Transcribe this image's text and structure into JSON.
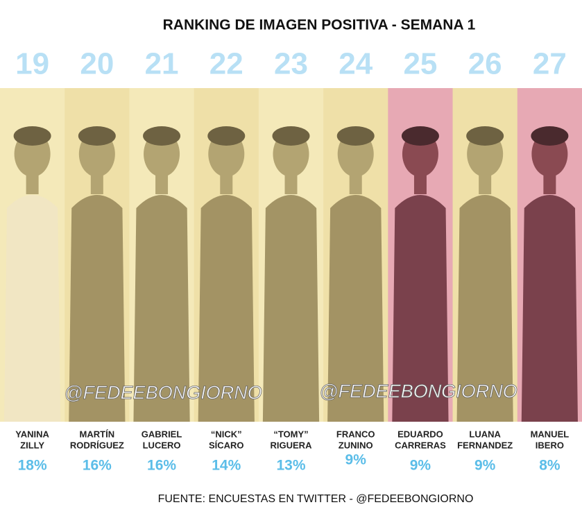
{
  "header": {
    "title": "RANKING DE IMAGEN POSITIVA - SEMANA 1"
  },
  "people": [
    {
      "rank": "19",
      "name": [
        "YANINA",
        "ZILLY"
      ],
      "percent": "18%"
    },
    {
      "rank": "20",
      "name": [
        "MARTÍN",
        "RODRÍGUEZ"
      ],
      "percent": "16%"
    },
    {
      "rank": "21",
      "name": [
        "GABRIEL",
        "LUCERO"
      ],
      "percent": "16%"
    },
    {
      "rank": "22",
      "name": [
        "“NICK”",
        "SÍCARO"
      ],
      "percent": "14%"
    },
    {
      "rank": "23",
      "name": [
        "“TOMY”",
        "RIGUERA"
      ],
      "percent": "13%"
    },
    {
      "rank": "24",
      "name": [
        "FRANCO",
        "ZUNINO"
      ],
      "percent": "9%"
    },
    {
      "rank": "25",
      "name": [
        "EDUARDO",
        "CARRERAS"
      ],
      "percent": "9%"
    },
    {
      "rank": "26",
      "name": [
        "LUANA",
        "FERNANDEZ"
      ],
      "percent": "9%"
    },
    {
      "rank": "27",
      "name": [
        "MANUEL",
        "IBERO"
      ],
      "percent": "8%"
    }
  ],
  "watermarks": [
    "@FEDEEBONGIORNO",
    "@FEDEEBONGIORNO"
  ],
  "footer": {
    "source": "FUENTE: ENCUESTAS EN TWITTER - @FEDEEBONGIORNO"
  }
}
